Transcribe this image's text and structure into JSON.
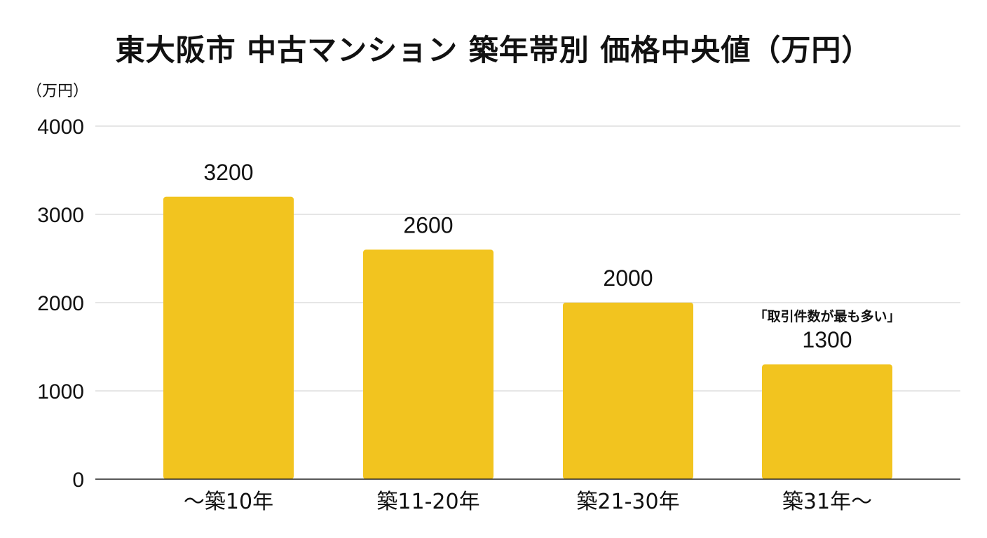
{
  "chart_data": {
    "type": "bar",
    "title": "東大阪市 中古マンション 築年帯別 価格中央値（万円）",
    "ylabel": "（万円）",
    "xlabel": "",
    "categories": [
      "～築10年",
      "築11-20年",
      "築21-30年",
      "築31年～"
    ],
    "values": [
      3200,
      2600,
      2000,
      1300
    ],
    "ylim": [
      0,
      4000
    ],
    "yticks": [
      0,
      1000,
      2000,
      3000,
      4000
    ],
    "grid": true,
    "legend": "none",
    "annotations": [
      {
        "category": "築31年～",
        "text": "「取引件数が最も多い」"
      }
    ],
    "colors": {
      "bar": "#F2C41F",
      "grid": "#D6D6D6",
      "axis": "#222222",
      "text": "#111111"
    }
  }
}
